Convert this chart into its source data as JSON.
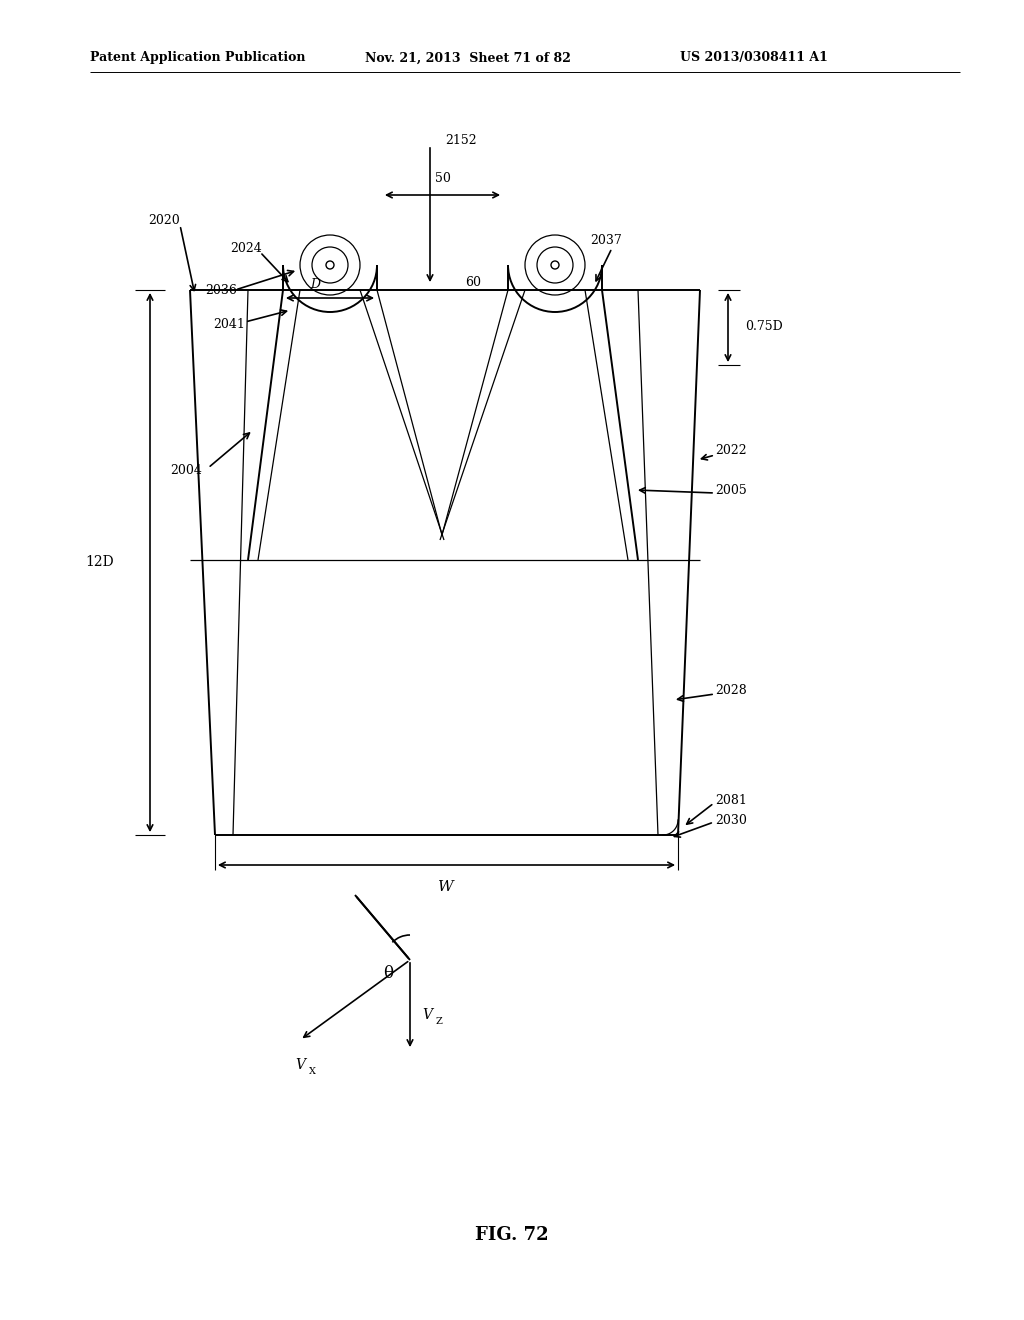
{
  "title": "FIG. 72",
  "header_left": "Patent Application Publication",
  "header_mid": "Nov. 21, 2013  Sheet 71 of 82",
  "header_right": "US 2013/0308411 A1",
  "bg_color": "#ffffff",
  "line_color": "#000000",
  "lw_main": 1.4,
  "lw_thin": 0.9,
  "fs_label": 9,
  "fs_title": 13
}
